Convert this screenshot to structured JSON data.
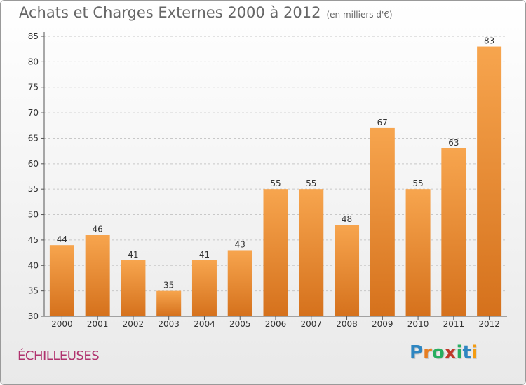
{
  "header": {
    "title": "Achats et Charges Externes 2000 à 2012",
    "unit": "(en milliers d'€)"
  },
  "footer": {
    "commune": "ÉCHILLEUSES",
    "logo_letters": [
      "P",
      "r",
      "o",
      "x",
      "i",
      "t",
      "i"
    ],
    "logo_colors": [
      "#2e86c1",
      "#e67e22",
      "#27ae60",
      "#c0392b",
      "#27ae60",
      "#2e86c1",
      "#f39c12"
    ]
  },
  "colors": {
    "bar_top": "#f7a54e",
    "bar_bottom": "#d5711c",
    "grid": "#c8c8c8",
    "axis": "#555555"
  },
  "chart_data": {
    "type": "bar",
    "title": "Achats et Charges Externes 2000 à 2012",
    "subtitle": "(en milliers d'€)",
    "categories": [
      "2000",
      "2001",
      "2002",
      "2003",
      "2004",
      "2005",
      "2006",
      "2007",
      "2008",
      "2009",
      "2010",
      "2011",
      "2012"
    ],
    "values": [
      44,
      46,
      41,
      35,
      41,
      43,
      55,
      55,
      48,
      67,
      55,
      63,
      83
    ],
    "ylim": [
      30,
      85
    ],
    "yticks": [
      30,
      35,
      40,
      45,
      50,
      55,
      60,
      65,
      70,
      75,
      80,
      85
    ],
    "grid": true,
    "xlabel": "",
    "ylabel": ""
  }
}
